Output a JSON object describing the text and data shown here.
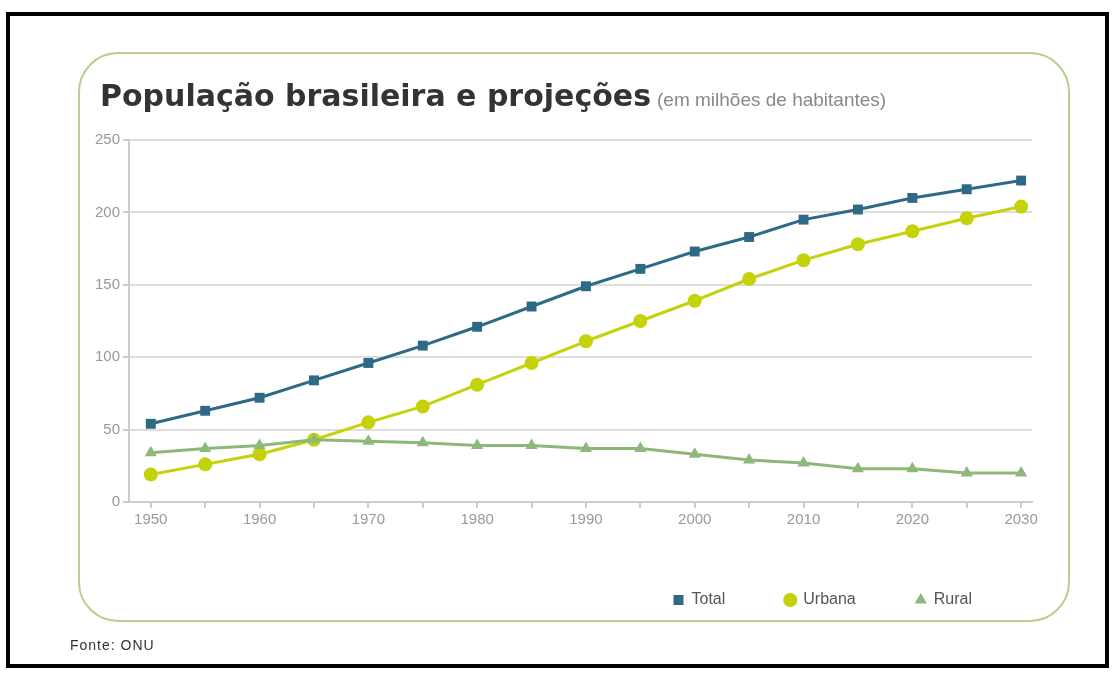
{
  "chart_data": {
    "type": "line",
    "title": "População brasileira e projeções",
    "subtitle": "(em milhões de habitantes)",
    "x": [
      1950,
      1955,
      1960,
      1965,
      1970,
      1975,
      1980,
      1985,
      1990,
      1995,
      2000,
      2005,
      2010,
      2015,
      2020,
      2025,
      2030
    ],
    "series": [
      {
        "name": "Total",
        "color": "#2e6a86",
        "marker": "square",
        "values": [
          54,
          63,
          72,
          84,
          96,
          108,
          121,
          135,
          149,
          161,
          173,
          183,
          195,
          202,
          210,
          216,
          222
        ]
      },
      {
        "name": "Urbana",
        "color": "#c5d20a",
        "marker": "circle",
        "values": [
          19,
          26,
          33,
          43,
          55,
          66,
          81,
          96,
          111,
          125,
          139,
          154,
          167,
          178,
          187,
          196,
          204
        ]
      },
      {
        "name": "Rural",
        "color": "#8db87a",
        "marker": "triangle",
        "values": [
          34,
          37,
          39,
          43,
          42,
          41,
          39,
          39,
          37,
          37,
          33,
          29,
          27,
          23,
          23,
          20,
          20
        ]
      }
    ],
    "xlim": [
      1948,
      2031
    ],
    "xticks": [
      1950,
      {
        "value": 1955,
        "label": null
      },
      1960,
      {
        "value": 1965,
        "label": null
      },
      1970,
      {
        "value": 1975,
        "label": null
      },
      1980,
      {
        "value": 1985,
        "label": null
      },
      1990,
      {
        "value": 1995,
        "label": null
      },
      2000,
      {
        "value": 2005,
        "label": null
      },
      2010,
      {
        "value": 2015,
        "label": null
      },
      2020,
      {
        "value": 2025,
        "label": null
      },
      2030
    ],
    "ylim": [
      0,
      250
    ],
    "yticks": [
      0,
      50,
      100,
      150,
      200,
      250
    ],
    "grid": "y",
    "legend": "bottom right",
    "line_style": "solid",
    "annotations": [
      "Fonte: ONU"
    ]
  }
}
